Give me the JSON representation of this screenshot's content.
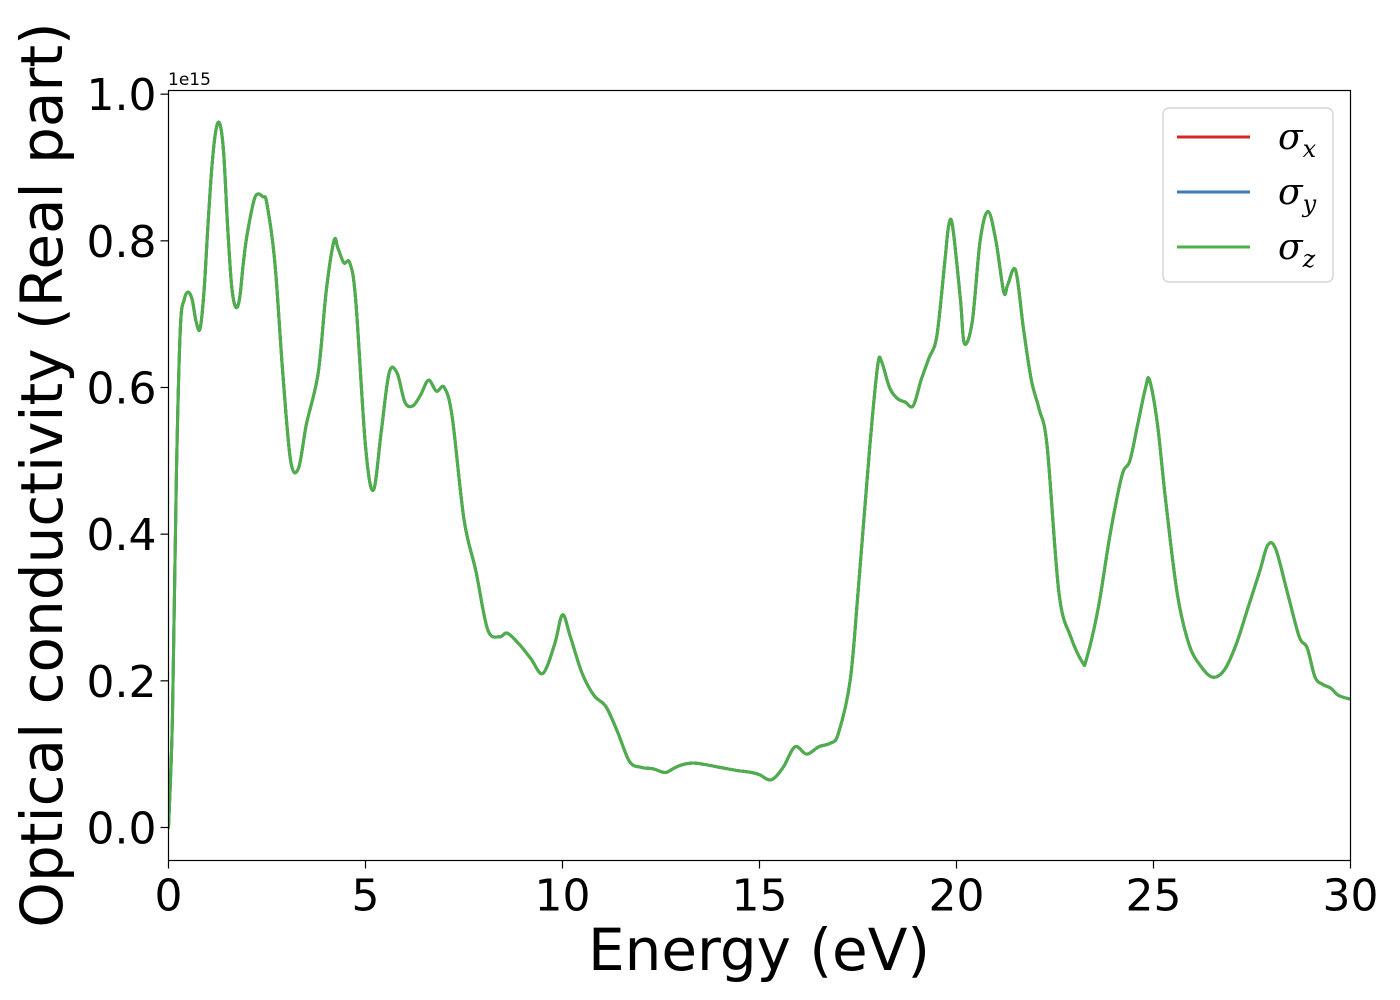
{
  "chart_data": {
    "type": "line",
    "xlabel": "Energy (eV)",
    "ylabel": "Optical conductivity (Real part)",
    "y_offset_text": "1e15",
    "y_multiplier": 1000000000000000.0,
    "xlim": [
      0,
      30
    ],
    "ylim": [
      -0.045,
      1.005
    ],
    "x_ticks": [
      0,
      5,
      10,
      15,
      20,
      25,
      30
    ],
    "x_tick_labels": [
      "0",
      "5",
      "10",
      "15",
      "20",
      "25",
      "30"
    ],
    "y_ticks": [
      0.0,
      0.2,
      0.4,
      0.6,
      0.8,
      1.0
    ],
    "y_tick_labels": [
      "0.0",
      "0.2",
      "0.4",
      "0.6",
      "0.8",
      "1.0"
    ],
    "grid": false,
    "legend_position": "top-right",
    "series": [
      {
        "name": "σ",
        "subscript": "x",
        "color": "#d62728"
      },
      {
        "name": "σ",
        "subscript": "y",
        "color": "#3a7db8"
      },
      {
        "name": "σ",
        "subscript": "z",
        "color": "#4daf4a"
      }
    ],
    "x": [
      0,
      0.1,
      0.2,
      0.3,
      0.4,
      0.5,
      0.6,
      0.7,
      0.8,
      0.9,
      1.0,
      1.1,
      1.2,
      1.3,
      1.4,
      1.5,
      1.6,
      1.7,
      1.8,
      1.9,
      2.0,
      2.2,
      2.4,
      2.5,
      2.7,
      2.9,
      3.1,
      3.3,
      3.5,
      3.8,
      4.0,
      4.2,
      4.3,
      4.45,
      4.6,
      4.75,
      5.0,
      5.2,
      5.4,
      5.6,
      5.8,
      6.0,
      6.2,
      6.4,
      6.6,
      6.8,
      7.0,
      7.2,
      7.5,
      7.8,
      8.1,
      8.4,
      8.6,
      8.9,
      9.2,
      9.5,
      9.8,
      10.0,
      10.2,
      10.5,
      10.8,
      11.1,
      11.4,
      11.7,
      12.0,
      12.3,
      12.6,
      12.8,
      13.0,
      13.3,
      13.6,
      14.0,
      14.4,
      14.8,
      15.0,
      15.3,
      15.6,
      15.9,
      16.2,
      16.5,
      16.8,
      17.0,
      17.3,
      17.5,
      17.8,
      18.0,
      18.1,
      18.3,
      18.5,
      18.7,
      18.9,
      19.1,
      19.3,
      19.5,
      19.7,
      19.8,
      19.9,
      20.1,
      20.2,
      20.4,
      20.6,
      20.8,
      21.0,
      21.2,
      21.3,
      21.5,
      21.7,
      21.9,
      22.1,
      22.3,
      22.6,
      22.9,
      23.2,
      23.3,
      23.6,
      23.9,
      24.2,
      24.4,
      24.6,
      24.8,
      24.9,
      25.1,
      25.3,
      25.6,
      25.9,
      26.2,
      26.5,
      26.8,
      27.1,
      27.4,
      27.7,
      27.9,
      28.1,
      28.4,
      28.7,
      28.9,
      29.1,
      29.3,
      29.5,
      29.7,
      30.0
    ],
    "y": [
      0.0,
      0.15,
      0.48,
      0.68,
      0.72,
      0.73,
      0.72,
      0.69,
      0.68,
      0.73,
      0.82,
      0.9,
      0.95,
      0.96,
      0.92,
      0.82,
      0.74,
      0.71,
      0.72,
      0.77,
      0.81,
      0.86,
      0.86,
      0.85,
      0.77,
      0.62,
      0.5,
      0.49,
      0.55,
      0.62,
      0.73,
      0.8,
      0.79,
      0.77,
      0.77,
      0.72,
      0.52,
      0.46,
      0.54,
      0.62,
      0.62,
      0.58,
      0.575,
      0.59,
      0.61,
      0.595,
      0.6,
      0.56,
      0.42,
      0.35,
      0.27,
      0.26,
      0.265,
      0.25,
      0.23,
      0.21,
      0.25,
      0.29,
      0.26,
      0.21,
      0.18,
      0.165,
      0.13,
      0.09,
      0.082,
      0.08,
      0.075,
      0.08,
      0.085,
      0.088,
      0.086,
      0.082,
      0.078,
      0.075,
      0.072,
      0.065,
      0.082,
      0.11,
      0.1,
      0.11,
      0.115,
      0.128,
      0.2,
      0.32,
      0.52,
      0.63,
      0.635,
      0.6,
      0.585,
      0.58,
      0.575,
      0.61,
      0.64,
      0.67,
      0.77,
      0.82,
      0.82,
      0.72,
      0.66,
      0.69,
      0.8,
      0.84,
      0.8,
      0.73,
      0.74,
      0.76,
      0.68,
      0.61,
      0.57,
      0.52,
      0.32,
      0.26,
      0.225,
      0.23,
      0.3,
      0.4,
      0.48,
      0.5,
      0.55,
      0.6,
      0.61,
      0.55,
      0.45,
      0.32,
      0.25,
      0.22,
      0.205,
      0.215,
      0.25,
      0.3,
      0.35,
      0.385,
      0.38,
      0.32,
      0.26,
      0.245,
      0.205,
      0.195,
      0.19,
      0.18,
      0.175
    ]
  }
}
